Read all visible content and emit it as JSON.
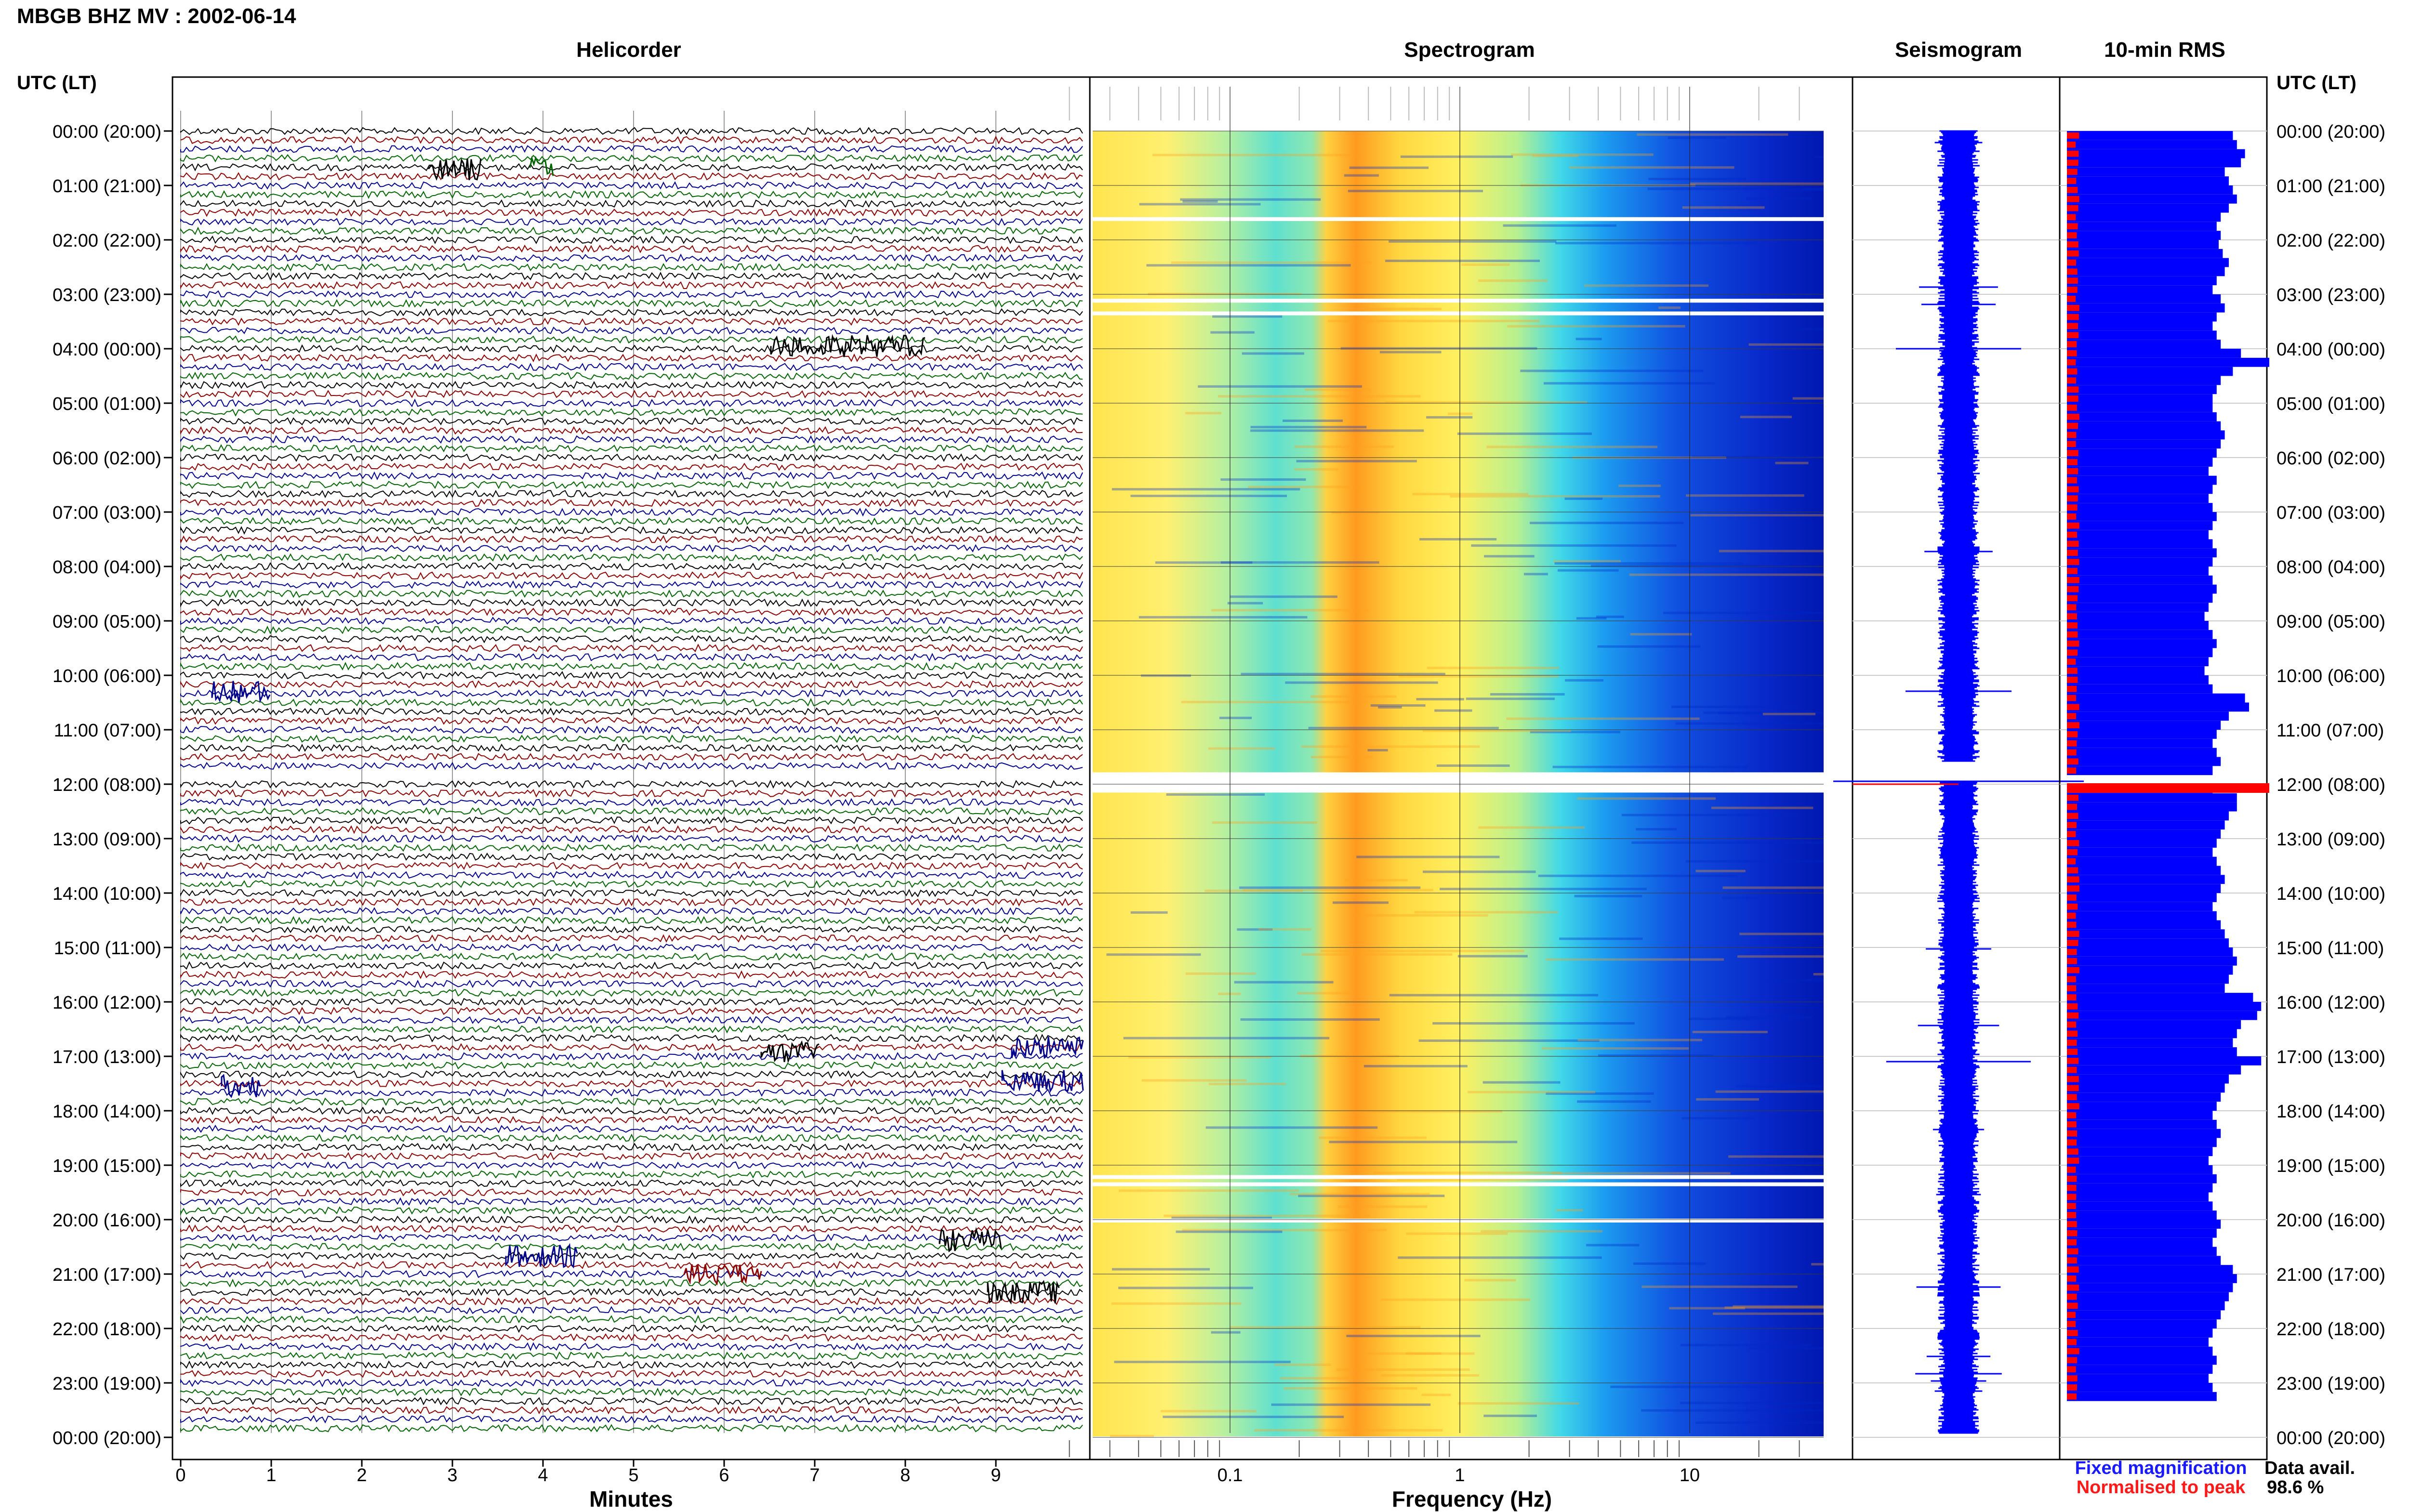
{
  "header": {
    "title": "MBGB BHZ MV : 2002-06-14"
  },
  "panels": {
    "helicorder": "Helicorder",
    "spectrogram": "Spectrogram",
    "seismogram": "Seismogram",
    "rms": "10-min RMS"
  },
  "axes": {
    "left_label": "UTC (LT)",
    "right_label": "UTC (LT)",
    "x_helicorder_label": "Minutes",
    "x_spectrogram_label": "Frequency (Hz)"
  },
  "time_ticks": [
    "00:00 (20:00)",
    "01:00 (21:00)",
    "02:00 (22:00)",
    "03:00 (23:00)",
    "04:00 (00:00)",
    "05:00 (01:00)",
    "06:00 (02:00)",
    "07:00 (03:00)",
    "08:00 (04:00)",
    "09:00 (05:00)",
    "10:00 (06:00)",
    "11:00 (07:00)",
    "12:00 (08:00)",
    "13:00 (09:00)",
    "14:00 (10:00)",
    "15:00 (11:00)",
    "16:00 (12:00)",
    "17:00 (13:00)",
    "18:00 (14:00)",
    "19:00 (15:00)",
    "20:00 (16:00)",
    "21:00 (17:00)",
    "22:00 (18:00)",
    "23:00 (19:00)",
    "00:00 (20:00)"
  ],
  "minute_ticks": [
    "0",
    "1",
    "2",
    "3",
    "4",
    "5",
    "6",
    "7",
    "8",
    "9"
  ],
  "frequency_ticks": [
    "0.1",
    "1",
    "10"
  ],
  "legend": {
    "fixed": "Fixed magnification",
    "normalised": "Normalised to peak",
    "fixed_color": "#1a1aff",
    "normalised_color": "#ff1a1a"
  },
  "availability": {
    "label": "Data avail.",
    "value": "98.6 %"
  },
  "colors": {
    "trace_cycle": [
      "#000000",
      "#8b0000",
      "#00008b",
      "#006400"
    ],
    "rms_fixed": "#0000ff",
    "rms_normalised": "#ff0000"
  },
  "chart_data": {
    "type": "heatmap",
    "title": "MBGB BHZ MV : 2002-06-14",
    "time_range_utc": [
      "00:00",
      "24:00"
    ],
    "helicorder": {
      "xlabel": "Minutes",
      "xlim": [
        0,
        10
      ],
      "lines_per_hour": 6
    },
    "spectrogram": {
      "xlabel": "Frequency (Hz)",
      "x_scale": "log",
      "xlim": [
        0.02,
        40
      ],
      "peak_band_hz": [
        0.25,
        0.4
      ],
      "data_gaps_utc": [
        "01:36",
        "03:06",
        "03:20",
        "11:48",
        "19:12",
        "19:20",
        "20:00"
      ]
    },
    "rms_10min": {
      "series": [
        {
          "name": "Fixed magnification",
          "values": [
            0.82,
            0.84,
            0.88,
            0.86,
            0.78,
            0.8,
            0.82,
            0.84,
            0.8,
            0.76,
            0.74,
            0.76,
            0.75,
            0.77,
            0.8,
            0.78,
            0.74,
            0.72,
            0.76,
            0.78,
            0.74,
            0.72,
            0.74,
            0.76,
            0.86,
            1.0,
            0.82,
            0.76,
            0.74,
            0.72,
            0.72,
            0.74,
            0.76,
            0.78,
            0.76,
            0.74,
            0.72,
            0.7,
            0.74,
            0.72,
            0.7,
            0.72,
            0.74,
            0.72,
            0.7,
            0.72,
            0.74,
            0.72,
            0.7,
            0.72,
            0.74,
            0.72,
            0.7,
            0.68,
            0.7,
            0.72,
            0.74,
            0.72,
            0.7,
            0.68,
            0.7,
            0.72,
            0.88,
            0.9,
            0.8,
            0.76,
            0.74,
            0.72,
            0.74,
            0.76,
            0.72,
            0.7,
            0.72,
            0.84,
            0.84,
            0.8,
            0.78,
            0.76,
            0.74,
            0.72,
            0.74,
            0.76,
            0.78,
            0.76,
            0.74,
            0.72,
            0.74,
            0.76,
            0.78,
            0.8,
            0.82,
            0.84,
            0.82,
            0.8,
            0.78,
            0.92,
            0.96,
            0.94,
            0.86,
            0.84,
            0.82,
            0.84,
            0.96,
            0.86,
            0.8,
            0.78,
            0.76,
            0.74,
            0.72,
            0.74,
            0.76,
            0.74,
            0.72,
            0.7,
            0.72,
            0.74,
            0.72,
            0.7,
            0.72,
            0.74,
            0.76,
            0.74,
            0.72,
            0.74,
            0.76,
            0.82,
            0.84,
            0.82,
            0.8,
            0.78,
            0.76,
            0.74,
            0.72,
            0.7,
            0.72,
            0.74,
            0.72,
            0.7,
            0.72,
            0.74
          ],
          "color": "#0000ff"
        },
        {
          "name": "Normalised to peak",
          "peak_utc": "12:00",
          "color": "#ff0000"
        }
      ]
    }
  }
}
